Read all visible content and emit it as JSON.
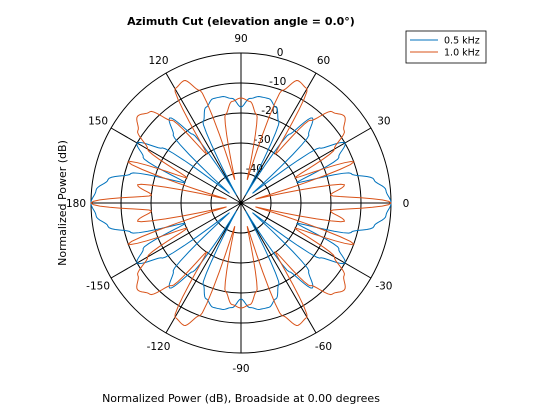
{
  "chart_data": {
    "type": "polar-line",
    "title": "Azimuth Cut (elevation angle = 0.0°)",
    "xlabel": "Normalized Power (dB), Broadside at 0.00 degrees",
    "ylabel": "Normalized Power (dB)",
    "angle_ticks": [
      {
        "deg": 0,
        "label": "0"
      },
      {
        "deg": 30,
        "label": "30"
      },
      {
        "deg": 60,
        "label": "60"
      },
      {
        "deg": 90,
        "label": "90"
      },
      {
        "deg": 120,
        "label": "120"
      },
      {
        "deg": 150,
        "label": "150"
      },
      {
        "deg": 180,
        "label": "180"
      },
      {
        "deg": -150,
        "label": "-150"
      },
      {
        "deg": -120,
        "label": "-120"
      },
      {
        "deg": -90,
        "label": "-90"
      },
      {
        "deg": -60,
        "label": "-60"
      },
      {
        "deg": -30,
        "label": "-30"
      }
    ],
    "radial_ticks": [
      {
        "db": 0,
        "label": "0"
      },
      {
        "db": -10,
        "label": "-10"
      },
      {
        "db": -20,
        "label": "-20"
      },
      {
        "db": -30,
        "label": "-30"
      },
      {
        "db": -40,
        "label": "-40"
      }
    ],
    "rlim": [
      -50,
      0
    ],
    "series": [
      {
        "name": "0.5 kHz",
        "color": "#0072BD",
        "angles_deg": [
          0,
          5,
          10,
          15,
          20,
          25,
          30,
          35,
          40,
          45,
          50,
          55,
          60,
          65,
          70,
          75,
          80,
          85,
          90,
          95,
          100,
          105,
          110,
          115,
          120,
          125,
          130,
          135,
          140,
          145,
          150,
          155,
          160,
          165,
          170,
          175,
          180,
          185,
          190,
          195,
          200,
          205,
          210,
          215,
          220,
          225,
          230,
          235,
          240,
          245,
          250,
          255,
          260,
          265,
          270,
          275,
          280,
          285,
          290,
          295,
          300,
          305,
          310,
          315,
          320,
          325,
          330,
          335,
          340,
          345,
          350,
          355
        ],
        "values_db": [
          0,
          -1.5,
          -5,
          -12,
          -30,
          -14,
          -10,
          -18,
          -45,
          -18,
          -13,
          -22,
          -47,
          -20,
          -16,
          -14,
          -14,
          -15,
          -18,
          -15,
          -14,
          -14,
          -16,
          -20,
          -47,
          -22,
          -13,
          -18,
          -45,
          -18,
          -10,
          -14,
          -30,
          -12,
          -5,
          -1.5,
          0,
          -1.5,
          -5,
          -12,
          -30,
          -14,
          -10,
          -18,
          -45,
          -18,
          -13,
          -22,
          -47,
          -20,
          -16,
          -14,
          -14,
          -15,
          -18,
          -15,
          -14,
          -14,
          -16,
          -20,
          -47,
          -22,
          -13,
          -18,
          -45,
          -18,
          -10,
          -14,
          -30,
          -12,
          -5,
          -1.5
        ]
      },
      {
        "name": "1.0 kHz",
        "color": "#D95319",
        "angles_deg": [
          0,
          5,
          10,
          15,
          20,
          25,
          30,
          35,
          40,
          45,
          50,
          55,
          60,
          65,
          70,
          75,
          80,
          85,
          90,
          95,
          100,
          105,
          110,
          115,
          120,
          125,
          130,
          135,
          140,
          145,
          150,
          155,
          160,
          165,
          170,
          175,
          180,
          185,
          190,
          195,
          200,
          205,
          210,
          215,
          220,
          225,
          230,
          235,
          240,
          245,
          250,
          255,
          260,
          265,
          270,
          275,
          280,
          285,
          290,
          295,
          300,
          305,
          310,
          315,
          320,
          325,
          330,
          335,
          340,
          345,
          350,
          355
        ],
        "values_db": [
          0,
          -20,
          -15,
          -45,
          -10,
          -30,
          -14,
          -8,
          -5,
          -7,
          -14,
          -30,
          -6,
          -5,
          -10,
          -42,
          -20,
          -16,
          -15,
          -16,
          -20,
          -42,
          -10,
          -5,
          -6,
          -30,
          -14,
          -7,
          -5,
          -8,
          -14,
          -30,
          -10,
          -45,
          -15,
          -20,
          0,
          -20,
          -15,
          -45,
          -10,
          -30,
          -14,
          -8,
          -5,
          -7,
          -14,
          -30,
          -6,
          -5,
          -10,
          -42,
          -20,
          -16,
          -15,
          -16,
          -20,
          -42,
          -10,
          -5,
          -6,
          -30,
          -14,
          -7,
          -5,
          -8,
          -14,
          -30,
          -10,
          -45,
          -15,
          -20
        ]
      }
    ],
    "legend": "top-right",
    "grid": true
  }
}
